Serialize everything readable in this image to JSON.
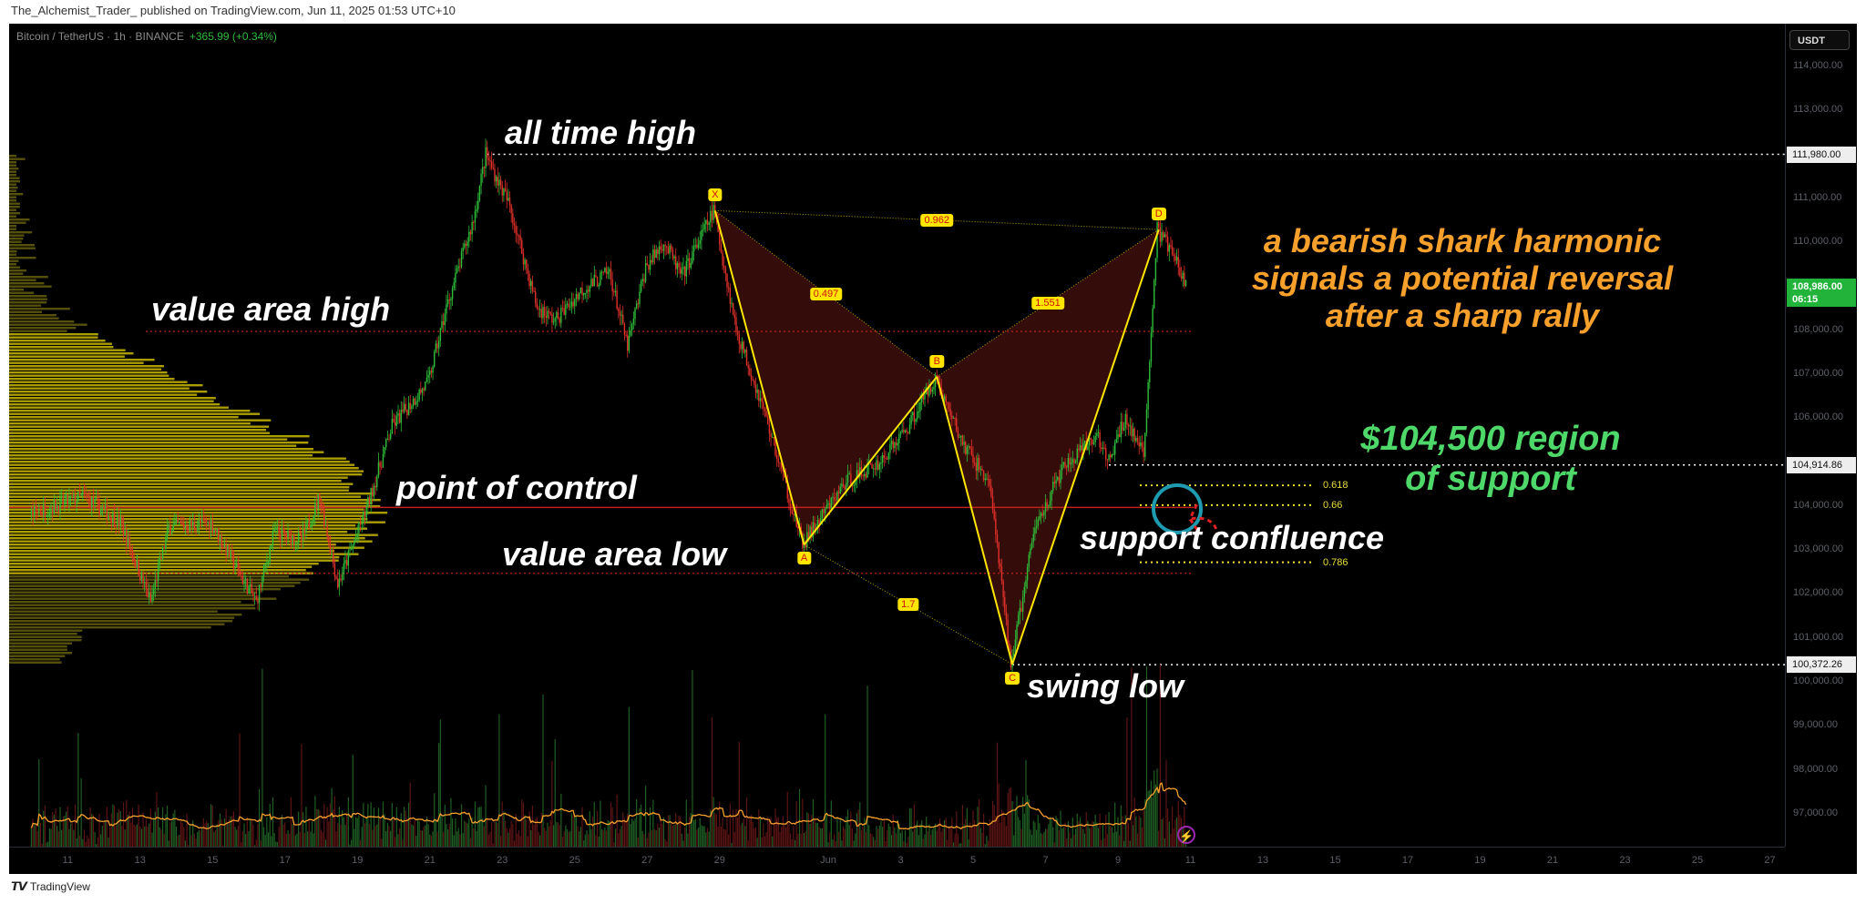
{
  "header": {
    "publisher_line": "The_Alchemist_Trader_ published on TradingView.com, Jun 11, 2025 01:53 UTC+10"
  },
  "symbol": {
    "title": "Bitcoin / TetherUS · 1h · BINANCE",
    "change": "+365.99 (+0.34%)"
  },
  "footer": {
    "brand": "TradingView",
    "logo_glyph": "TV"
  },
  "colors": {
    "up": "#2ebd3a",
    "down": "#e0302a",
    "pattern": "#ffe500",
    "pattern_fill": "#3a0d0a",
    "annotation_orange": "#f7a02c",
    "annotation_green": "#4fd86a",
    "circle": "#1e9bb0"
  },
  "chart_data": {
    "type": "candlestick",
    "title": "Bitcoin / TetherUS · 1h · BINANCE",
    "currency": "USDT",
    "ylim": [
      96200,
      115000
    ],
    "y_ticks": [
      "114,000.00",
      "113,000.00",
      "111,000.00",
      "110,000.00",
      "108,000.00",
      "107,000.00",
      "106,000.00",
      "104,000.00",
      "103,000.00",
      "102,000.00",
      "101,000.00",
      "100,000.00",
      "99,000.00",
      "98,000.00",
      "97,000.00"
    ],
    "y_tick_values": [
      114000,
      113000,
      111000,
      110000,
      108000,
      107000,
      106000,
      104000,
      103000,
      102000,
      101000,
      100000,
      99000,
      98000,
      97000
    ],
    "x_ticks": [
      "11",
      "13",
      "15",
      "17",
      "19",
      "21",
      "23",
      "25",
      "27",
      "29",
      "Jun",
      "3",
      "5",
      "7",
      "9",
      "11",
      "13",
      "15",
      "17",
      "19",
      "21",
      "23",
      "25",
      "27"
    ],
    "x_tick_dates": [
      "05-11",
      "05-13",
      "05-15",
      "05-17",
      "05-19",
      "05-21",
      "05-23",
      "05-25",
      "05-27",
      "05-29",
      "06-01",
      "06-03",
      "06-05",
      "06-07",
      "06-09",
      "06-11",
      "06-13",
      "06-15",
      "06-17",
      "06-19",
      "06-21",
      "06-23",
      "06-25",
      "06-27"
    ],
    "current_price": {
      "label": "108,986.00",
      "countdown": "06:15",
      "value": 108986
    },
    "price_labels": [
      {
        "label": "111,980.00",
        "value": 111980,
        "from": "05-22 14"
      },
      {
        "label": "104,914.86",
        "value": 104914.86,
        "from": "06-08 18"
      },
      {
        "label": "100,372.26",
        "value": 100372.26,
        "from": "06-06 02"
      }
    ],
    "price_path": [
      [
        "05-10 00",
        103800
      ],
      [
        "05-11 12",
        104200
      ],
      [
        "05-12 12",
        103600
      ],
      [
        "05-13 08",
        101800
      ],
      [
        "05-13 20",
        103500
      ],
      [
        "05-15 00",
        103600
      ],
      [
        "05-15 18",
        102500
      ],
      [
        "05-16 06",
        101800
      ],
      [
        "05-16 18",
        103400
      ],
      [
        "05-17 12",
        103200
      ],
      [
        "05-18 00",
        104200
      ],
      [
        "05-18 12",
        102200
      ],
      [
        "05-19 06",
        103800
      ],
      [
        "05-20 00",
        105800
      ],
      [
        "05-21 00",
        106800
      ],
      [
        "05-21 12",
        108500
      ],
      [
        "05-22 06",
        110500
      ],
      [
        "05-22 14",
        111980
      ],
      [
        "05-23 06",
        110800
      ],
      [
        "05-24 00",
        108500
      ],
      [
        "05-24 12",
        108200
      ],
      [
        "05-25 06",
        108900
      ],
      [
        "05-26 00",
        109300
      ],
      [
        "05-26 12",
        107600
      ],
      [
        "05-27 00",
        109400
      ],
      [
        "05-27 12",
        110000
      ],
      [
        "05-28 00",
        109200
      ],
      [
        "05-28 21",
        110700
      ],
      [
        "05-29 12",
        108000
      ],
      [
        "05-30 06",
        106200
      ],
      [
        "05-31 08",
        103100
      ],
      [
        "06-01 12",
        104500
      ],
      [
        "06-02 12",
        105000
      ],
      [
        "06-03 06",
        105800
      ],
      [
        "06-04 00",
        106920
      ],
      [
        "06-04 18",
        105400
      ],
      [
        "06-05 12",
        104500
      ],
      [
        "06-06 02",
        100380
      ],
      [
        "06-06 18",
        103500
      ],
      [
        "06-07 12",
        104800
      ],
      [
        "06-08 12",
        105600
      ],
      [
        "06-08 18",
        104914
      ],
      [
        "06-09 06",
        106000
      ],
      [
        "06-09 18",
        105100
      ],
      [
        "06-10 03",
        110270
      ],
      [
        "06-10 12",
        109800
      ],
      [
        "06-10 22",
        108986
      ]
    ],
    "harmonic_pattern": {
      "name": "bearish shark",
      "points": [
        {
          "label": "X",
          "date": "05-28 21",
          "price": 110700
        },
        {
          "label": "A",
          "date": "05-31 08",
          "price": 103100
        },
        {
          "label": "B",
          "date": "06-04 00",
          "price": 106920
        },
        {
          "label": "C",
          "date": "06-06 02",
          "price": 100380
        },
        {
          "label": "D",
          "date": "06-10 03",
          "price": 110270
        }
      ],
      "ratios": [
        {
          "label": "0.962",
          "between": [
            "X",
            "D"
          ]
        },
        {
          "label": "0.497",
          "between": [
            "X",
            "B"
          ]
        },
        {
          "label": "1.551",
          "between": [
            "B",
            "D"
          ]
        },
        {
          "label": "1.7",
          "between": [
            "A",
            "C"
          ]
        }
      ]
    },
    "fib_levels": [
      {
        "label": "0.618",
        "price": 104450
      },
      {
        "label": "0.66",
        "price": 104000
      },
      {
        "label": "0.786",
        "price": 102700
      }
    ],
    "levels": [
      {
        "name": "value area high",
        "price": 107950,
        "style": "dotted",
        "color": "#c0201a"
      },
      {
        "name": "point of control",
        "price": 103950,
        "style": "solid",
        "color": "#c0201a"
      },
      {
        "name": "value area low",
        "price": 102450,
        "style": "dotted",
        "color": "#c0201a"
      }
    ]
  },
  "annotations": {
    "ath": "all time high",
    "vah": "value area high",
    "poc": "point of control",
    "val": "value area low",
    "swing_low": "swing low",
    "confluence": "support confluence",
    "shark": [
      "a bearish shark harmonic",
      "signals a potential reversal",
      "after a sharp rally"
    ],
    "support": [
      "$104,500 region",
      "of support"
    ]
  }
}
